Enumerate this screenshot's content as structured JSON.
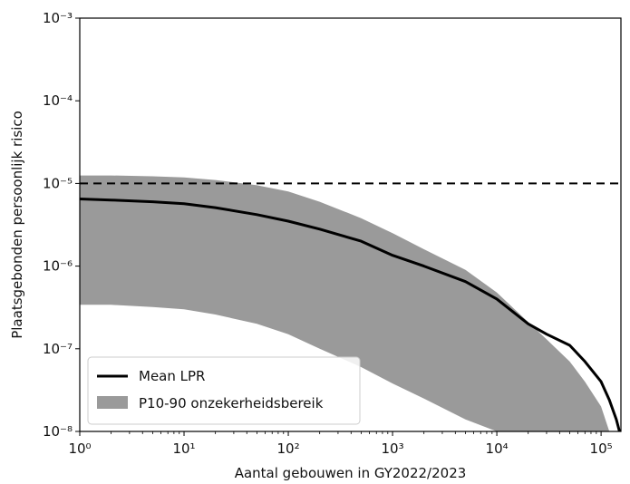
{
  "chart_data": {
    "type": "area",
    "xlabel": "Aantal gebouwen in GY2022/2023",
    "ylabel": "Plaatsgebonden persoonlijk risico",
    "xscale": "log",
    "yscale": "log",
    "xlim": [
      1,
      155000
    ],
    "ylim": [
      1e-08,
      0.001
    ],
    "x_ticks": [
      {
        "value": 1,
        "label": "10⁰"
      },
      {
        "value": 10,
        "label": "10¹"
      },
      {
        "value": 100,
        "label": "10²"
      },
      {
        "value": 1000,
        "label": "10³"
      },
      {
        "value": 10000,
        "label": "10⁴"
      },
      {
        "value": 100000,
        "label": "10⁵"
      }
    ],
    "y_ticks": [
      {
        "value": 1e-08,
        "label": "10⁻⁸"
      },
      {
        "value": 1e-07,
        "label": "10⁻⁷"
      },
      {
        "value": 1e-06,
        "label": "10⁻⁶"
      },
      {
        "value": 1e-05,
        "label": "10⁻⁵"
      },
      {
        "value": 0.0001,
        "label": "10⁻⁴"
      },
      {
        "value": 0.001,
        "label": "10⁻³"
      }
    ],
    "grid": false,
    "legend_placement": "bottom-left",
    "reference_line": {
      "y": 1e-05,
      "style": "dashed",
      "color": "#000000"
    },
    "series": [
      {
        "name": "Mean LPR",
        "kind": "line",
        "color": "#000000",
        "x": [
          1,
          2,
          5,
          10,
          20,
          50,
          100,
          200,
          500,
          1000,
          2000,
          5000,
          10000,
          20000,
          30000,
          50000,
          70000,
          100000,
          120000,
          140000,
          150000
        ],
        "y": [
          6.5e-06,
          6.3e-06,
          6e-06,
          5.7e-06,
          5.1e-06,
          4.2e-06,
          3.5e-06,
          2.8e-06,
          2e-06,
          1.35e-06,
          1e-06,
          6.5e-07,
          4e-07,
          2e-07,
          1.5e-07,
          1.1e-07,
          7e-08,
          4e-08,
          2.4e-08,
          1.4e-08,
          1e-08
        ]
      },
      {
        "name": "P10-90 onzekerheidsbereik",
        "kind": "band",
        "color": "#9a9a9a",
        "x": [
          1,
          2,
          5,
          10,
          20,
          50,
          100,
          200,
          500,
          1000,
          2000,
          5000,
          10000,
          20000,
          30000,
          50000,
          70000,
          100000,
          120000
        ],
        "upper": [
          1.25e-05,
          1.25e-05,
          1.22e-05,
          1.18e-05,
          1.1e-05,
          9.5e-06,
          8e-06,
          6e-06,
          3.8e-06,
          2.5e-06,
          1.6e-06,
          9e-07,
          4.8e-07,
          2.1e-07,
          1.3e-07,
          7e-08,
          4e-08,
          2e-08,
          1e-08
        ],
        "lower": [
          3.4e-07,
          3.4e-07,
          3.2e-07,
          3e-07,
          2.6e-07,
          2e-07,
          1.5e-07,
          1e-07,
          6e-08,
          3.8e-08,
          2.5e-08,
          1.4e-08,
          1e-08,
          1e-08,
          1e-08,
          1e-08,
          1e-08,
          1e-08,
          1e-08
        ]
      }
    ]
  }
}
